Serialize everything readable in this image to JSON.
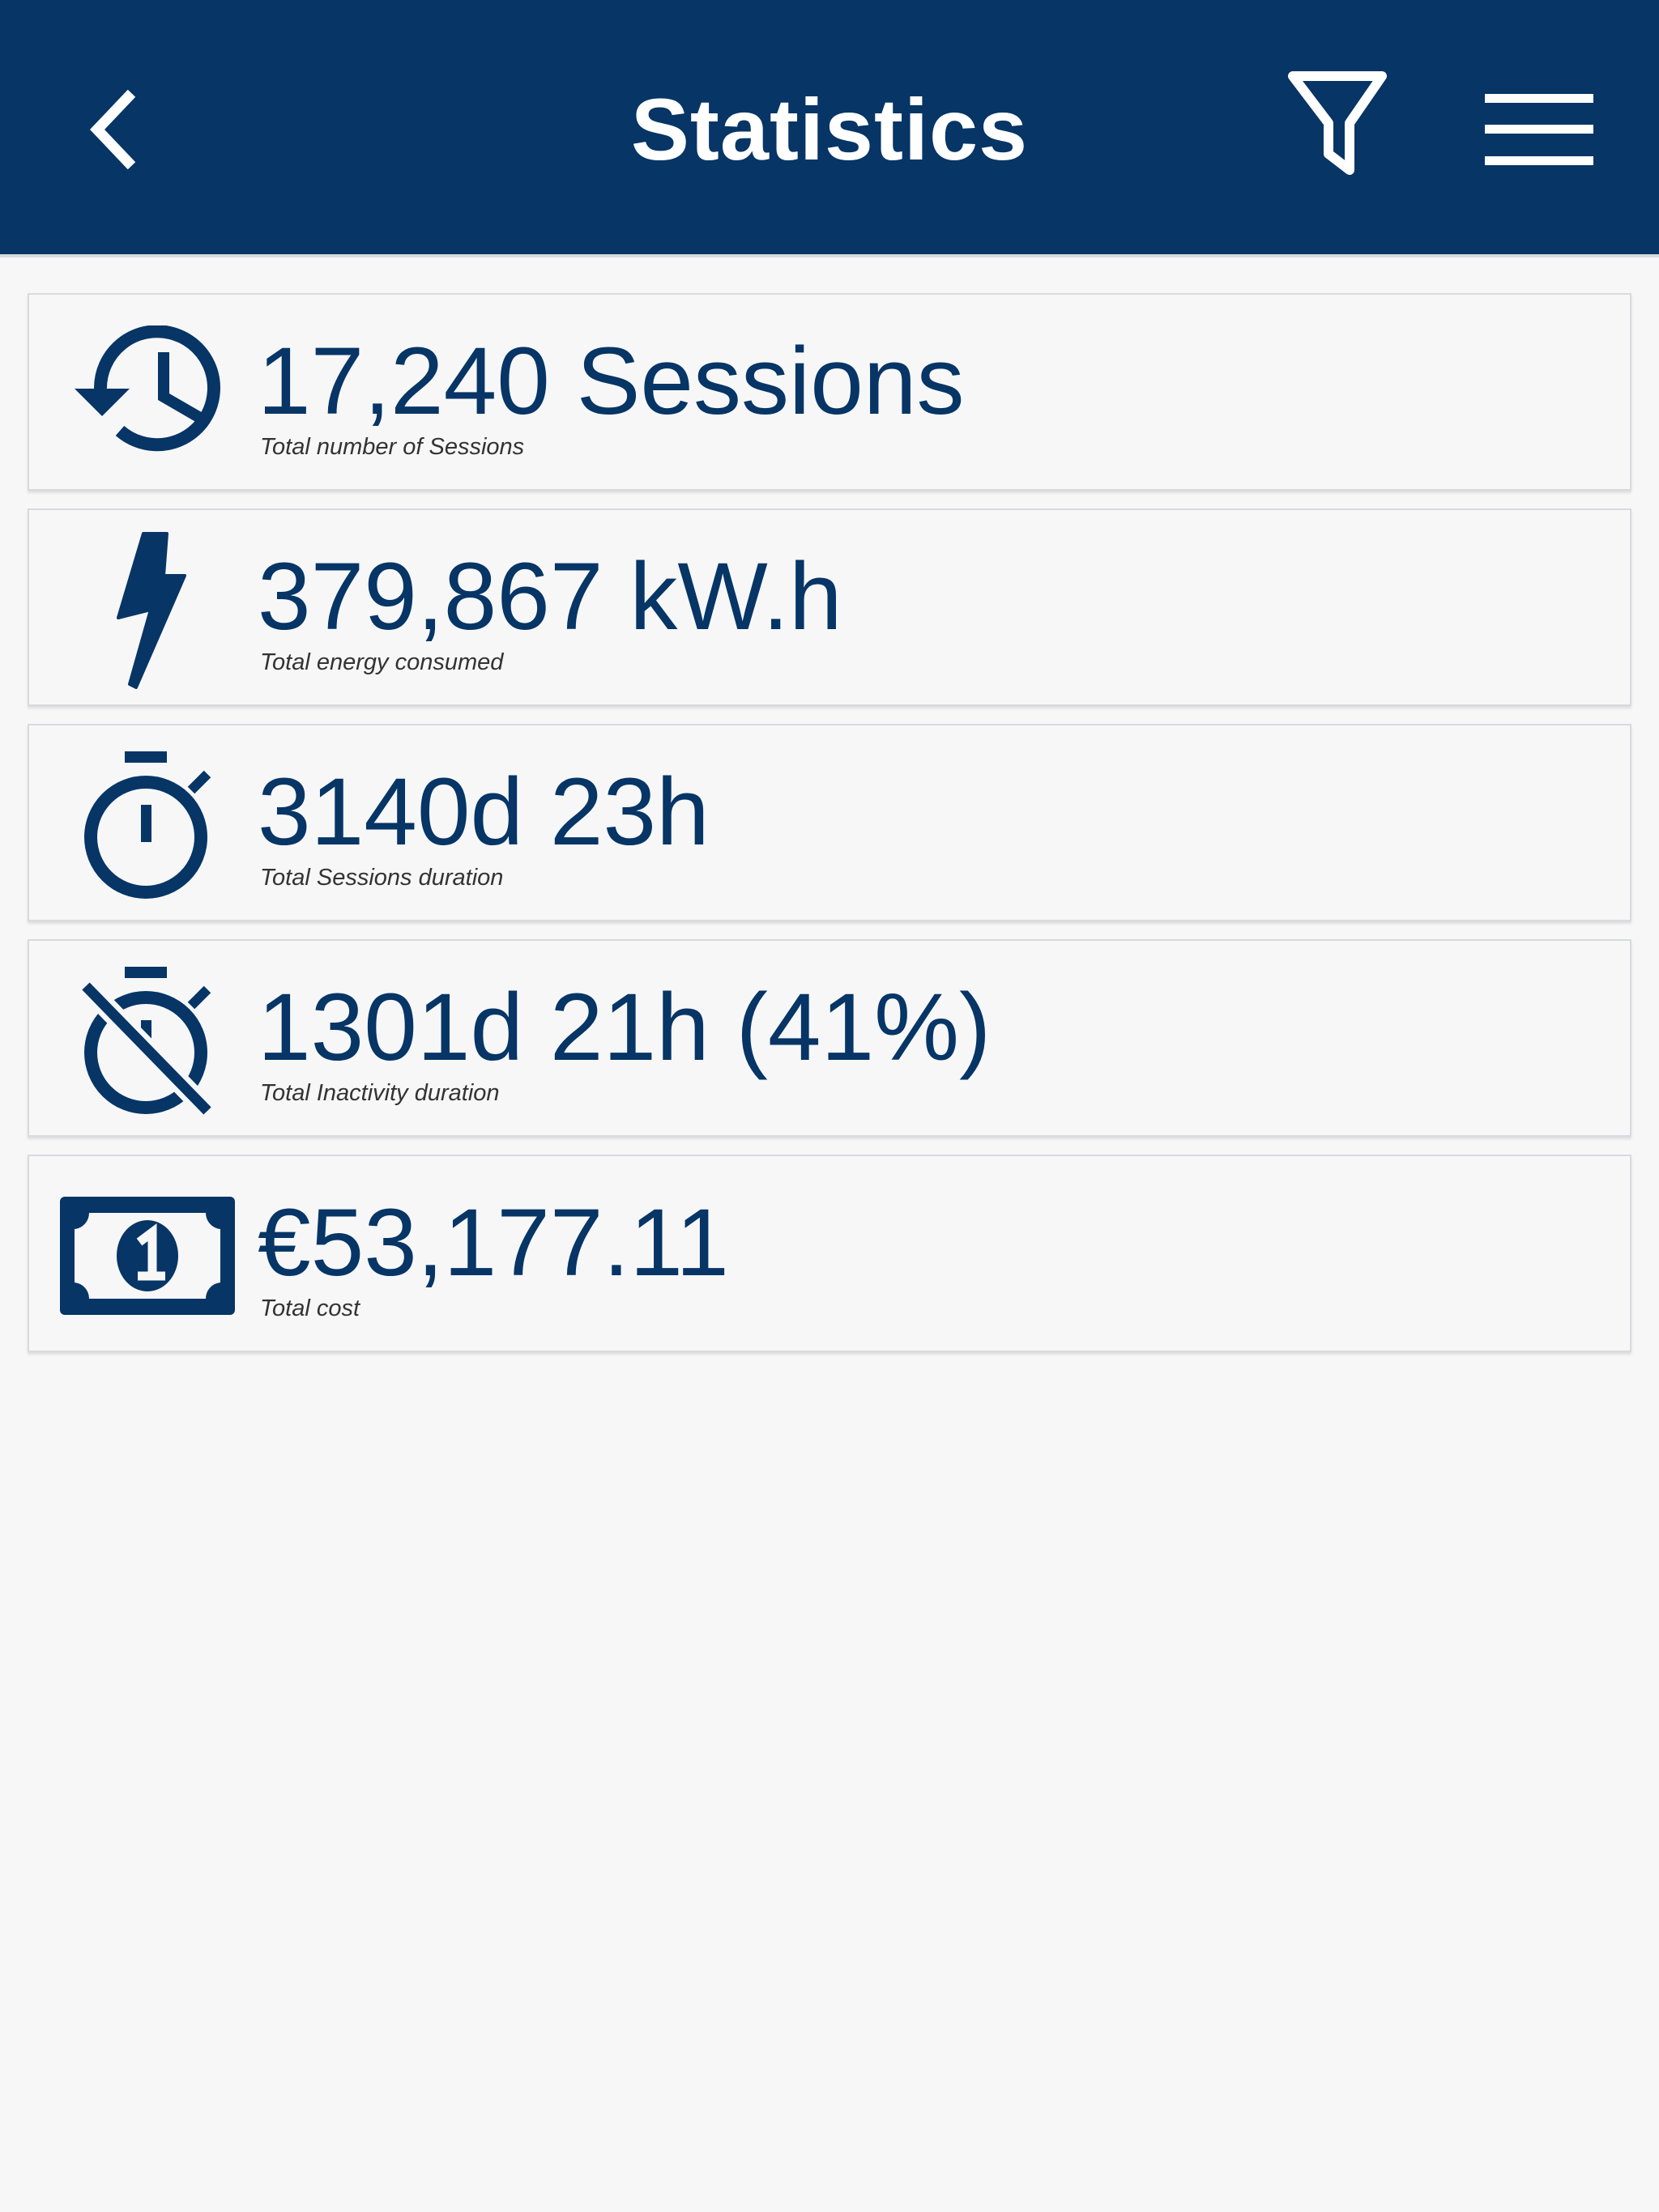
{
  "header": {
    "title": "Statistics",
    "back_icon": "chevron-left-icon",
    "filter_icon": "filter-icon",
    "menu_icon": "hamburger-menu-icon"
  },
  "colors": {
    "primary": "#063566",
    "background": "#f7f7f8",
    "header_text": "#ffffff"
  },
  "stats": [
    {
      "icon": "history-icon",
      "value": "17,240 Sessions",
      "label": "Total number of Sessions"
    },
    {
      "icon": "lightning-bolt-icon",
      "value": "379,867 kW.h",
      "label": "Total energy consumed"
    },
    {
      "icon": "stopwatch-icon",
      "value": "3140d 23h",
      "label": "Total Sessions duration"
    },
    {
      "icon": "stopwatch-off-icon",
      "value": "1301d 21h  (41%)",
      "label": "Total Inactivity duration"
    },
    {
      "icon": "banknote-icon",
      "value": "€53,177.11",
      "label": "Total cost"
    }
  ]
}
